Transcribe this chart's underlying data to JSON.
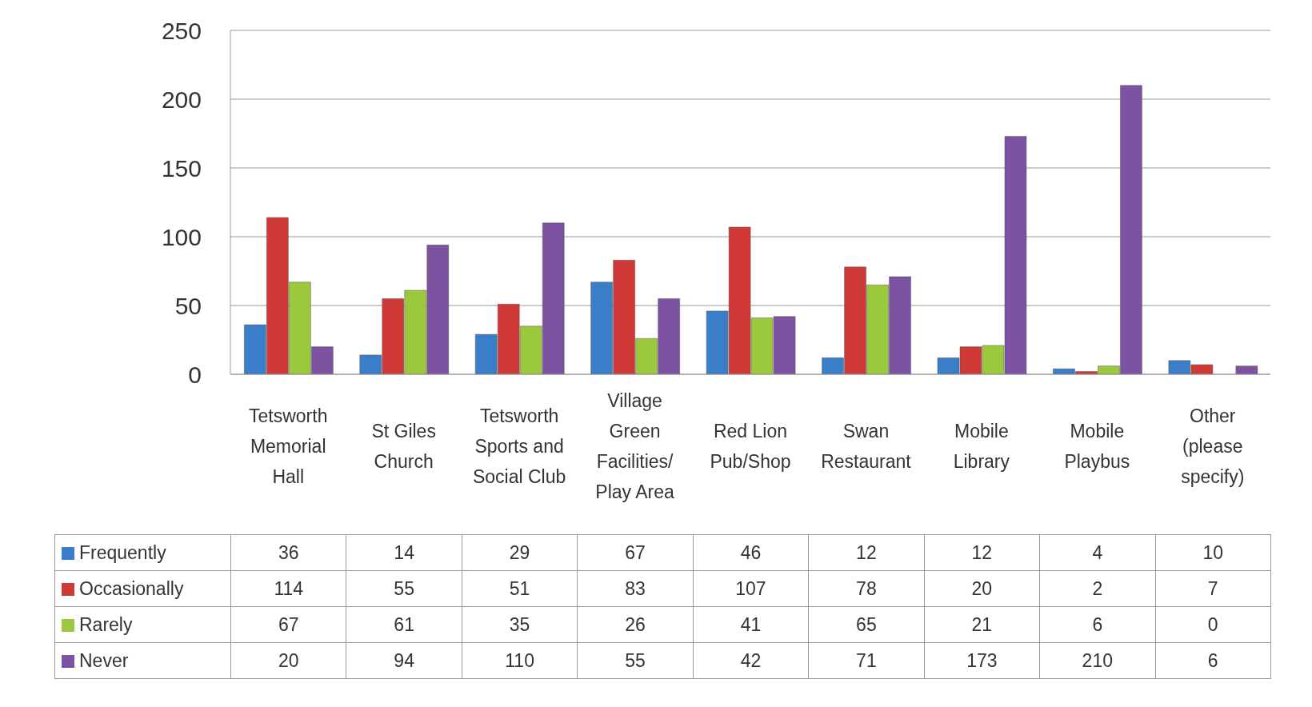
{
  "chart_data": {
    "type": "bar",
    "categories": [
      "Tetsworth Memorial Hall",
      "St Giles Church",
      "Tetsworth Sports and Social Club",
      "Village Green Facilities/Play Area",
      "Red Lion Pub/Shop",
      "Swan Restaurant",
      "Mobile Library",
      "Mobile Playbus",
      "Other (please specify)"
    ],
    "series": [
      {
        "name": "Frequently",
        "color": "#3a7dc9",
        "values": [
          36,
          14,
          29,
          67,
          46,
          12,
          12,
          4,
          10
        ]
      },
      {
        "name": "Occasionally",
        "color": "#d03a36",
        "values": [
          114,
          55,
          51,
          83,
          107,
          78,
          20,
          2,
          7
        ]
      },
      {
        "name": "Rarely",
        "color": "#9bc83c",
        "values": [
          67,
          61,
          35,
          26,
          41,
          65,
          21,
          6,
          0
        ]
      },
      {
        "name": "Never",
        "color": "#7d52a0",
        "values": [
          20,
          94,
          110,
          55,
          42,
          71,
          173,
          210,
          6
        ]
      }
    ],
    "ylim": [
      0,
      250
    ],
    "yticks": [
      0,
      50,
      100,
      150,
      200,
      250
    ],
    "grid": "y",
    "legend": "bottom left",
    "data_labels": true
  }
}
